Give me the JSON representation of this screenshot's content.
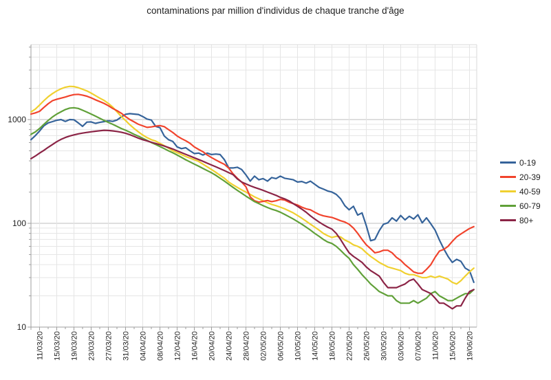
{
  "chart_data": {
    "type": "line",
    "title": "contaminations par million d'individus de chaque tranche d'âge",
    "y_axis": {
      "scale": "log",
      "min": 10,
      "max": 5300,
      "tick_values": [
        10,
        100,
        1000
      ],
      "tick_labels": [
        "10",
        "100",
        "1000"
      ],
      "grid": true
    },
    "x_axis": {
      "tick_labels": [
        "11/03/20",
        "15/03/20",
        "19/03/20",
        "23/03/20",
        "27/03/20",
        "31/03/20",
        "04/04/20",
        "08/04/20",
        "12/04/20",
        "16/04/20",
        "20/04/20",
        "24/04/20",
        "28/04/20",
        "02/05/20",
        "06/05/20",
        "10/05/20",
        "14/05/20",
        "18/05/20",
        "22/05/20",
        "26/05/20",
        "30/05/20",
        "03/06/20",
        "07/06/20",
        "11/06/20",
        "15/06/20",
        "19/06/20"
      ],
      "first_point_date": "09/03/20",
      "last_point_date": "20/06/20",
      "first_tick_day_index": 2,
      "tick_day_step": 4,
      "grid": true
    },
    "legend_position": "right",
    "series": [
      {
        "name": "0-19",
        "color": "#35639a",
        "values": [
          640,
          700,
          775,
          870,
          930,
          955,
          985,
          1000,
          960,
          1000,
          995,
          930,
          860,
          945,
          950,
          920,
          940,
          955,
          975,
          960,
          990,
          1060,
          1125,
          1140,
          1130,
          1120,
          1070,
          1010,
          990,
          860,
          835,
          695,
          640,
          615,
          545,
          525,
          535,
          500,
          470,
          475,
          455,
          475,
          460,
          465,
          460,
          410,
          342,
          342,
          347,
          330,
          293,
          255,
          285,
          263,
          270,
          255,
          276,
          270,
          285,
          272,
          268,
          263,
          250,
          253,
          244,
          255,
          238,
          222,
          214,
          205,
          200,
          190,
          173,
          148,
          135,
          146,
          120,
          126,
          95,
          68,
          70,
          85,
          98,
          101,
          113,
          105,
          119,
          108,
          117,
          110,
          121,
          101,
          113,
          99,
          86,
          69,
          57,
          48,
          42,
          45,
          43,
          37,
          35,
          27
        ]
      },
      {
        "name": "20-39",
        "color": "#f1432c",
        "values": [
          1130,
          1160,
          1200,
          1310,
          1420,
          1520,
          1570,
          1610,
          1650,
          1700,
          1740,
          1750,
          1720,
          1680,
          1620,
          1550,
          1490,
          1430,
          1360,
          1280,
          1220,
          1150,
          1070,
          1000,
          950,
          900,
          870,
          840,
          850,
          865,
          875,
          855,
          800,
          750,
          695,
          655,
          625,
          590,
          545,
          515,
          490,
          455,
          430,
          408,
          388,
          370,
          340,
          300,
          272,
          250,
          225,
          180,
          165,
          160,
          163,
          166,
          162,
          165,
          170,
          168,
          160,
          155,
          150,
          143,
          138,
          135,
          128,
          122,
          118,
          116,
          114,
          110,
          106,
          103,
          98,
          90,
          80,
          70,
          62,
          57,
          52,
          53,
          55,
          55,
          52,
          47,
          44,
          40,
          37,
          34,
          33,
          33,
          36,
          40,
          47,
          54,
          56,
          60,
          67,
          74,
          79,
          84,
          89,
          93
        ]
      },
      {
        "name": "40-59",
        "color": "#f0d02f",
        "values": [
          1185,
          1260,
          1380,
          1520,
          1660,
          1780,
          1890,
          1980,
          2050,
          2090,
          2080,
          2030,
          1960,
          1890,
          1800,
          1700,
          1610,
          1530,
          1430,
          1320,
          1190,
          1070,
          980,
          890,
          820,
          760,
          710,
          670,
          640,
          620,
          590,
          560,
          530,
          500,
          480,
          460,
          440,
          425,
          410,
          395,
          372,
          350,
          330,
          310,
          290,
          272,
          250,
          235,
          222,
          210,
          200,
          190,
          180,
          172,
          165,
          158,
          152,
          148,
          143,
          138,
          132,
          126,
          119,
          112,
          105,
          98,
          92,
          86,
          80,
          76,
          73,
          75,
          74,
          69,
          66,
          62,
          60,
          57,
          52,
          48,
          45,
          42,
          40,
          38,
          37,
          36,
          35,
          33,
          32,
          32,
          31,
          30,
          30,
          31,
          30,
          31,
          30,
          29,
          27,
          26,
          28,
          31,
          34,
          37
        ]
      },
      {
        "name": "60-79",
        "color": "#60a038",
        "values": [
          720,
          760,
          820,
          900,
          980,
          1060,
          1130,
          1190,
          1250,
          1290,
          1300,
          1280,
          1230,
          1180,
          1130,
          1080,
          1030,
          980,
          940,
          900,
          860,
          820,
          790,
          755,
          720,
          690,
          660,
          630,
          600,
          575,
          550,
          525,
          500,
          478,
          455,
          432,
          410,
          390,
          372,
          355,
          338,
          322,
          307,
          290,
          272,
          255,
          238,
          222,
          208,
          195,
          183,
          172,
          162,
          155,
          148,
          142,
          137,
          133,
          128,
          122,
          116,
          110,
          104,
          98,
          92,
          86,
          80,
          75,
          70,
          66,
          64,
          60,
          55,
          50,
          46,
          40,
          36,
          32,
          29,
          26,
          24,
          22,
          21,
          20,
          20,
          18,
          17,
          17,
          17,
          18,
          17,
          18,
          19,
          21,
          22,
          20,
          19,
          18,
          18,
          19,
          20,
          21,
          21,
          23
        ]
      },
      {
        "name": "80+",
        "color": "#8b2446",
        "values": [
          420,
          445,
          475,
          505,
          540,
          575,
          612,
          645,
          672,
          695,
          712,
          728,
          740,
          752,
          762,
          772,
          780,
          788,
          785,
          778,
          768,
          755,
          738,
          715,
          688,
          662,
          640,
          622,
          605,
          588,
          572,
          555,
          538,
          520,
          500,
          480,
          462,
          445,
          428,
          412,
          396,
          380,
          365,
          350,
          336,
          322,
          308,
          295,
          268,
          250,
          240,
          230,
          222,
          215,
          208,
          200,
          193,
          186,
          178,
          172,
          165,
          155,
          146,
          137,
          128,
          118,
          110,
          103,
          97,
          92,
          88,
          80,
          70,
          60,
          52,
          48,
          45,
          42,
          38,
          35,
          33,
          31,
          27,
          24,
          24,
          24,
          25,
          26,
          28,
          29,
          26,
          23,
          22,
          21,
          19,
          17,
          17,
          16,
          15,
          16,
          16,
          19,
          22,
          23
        ]
      }
    ]
  },
  "style": {
    "background": "#ffffff",
    "grid_minor_color": "#e5e5e5",
    "grid_decade_color": "#bdbdbd",
    "axis_color": "#9e9e9e",
    "border_color": "#d8d8d8",
    "text_color": "#1f1f1f"
  }
}
